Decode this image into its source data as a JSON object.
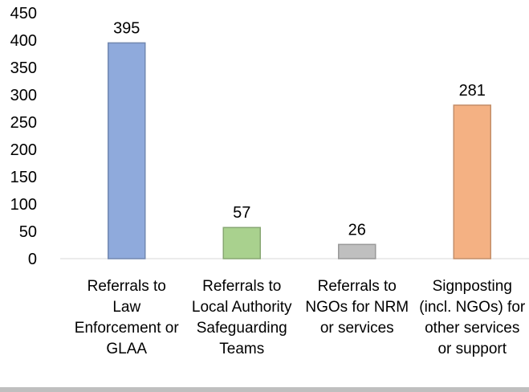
{
  "chart_data": {
    "type": "bar",
    "categories": [
      "Referrals to Law Enforcement or GLAA",
      "Referrals to Local Authority Safeguarding Teams",
      "Referrals to NGOs for NRM or services",
      "Signposting (incl. NGOs) for other services or support"
    ],
    "values": [
      395,
      57,
      26,
      281
    ],
    "colors": [
      "#8faadc",
      "#a9d18e",
      "#bfbfbf",
      "#f4b183"
    ],
    "ylim": [
      0,
      450
    ],
    "yticks": [
      0,
      50,
      100,
      150,
      200,
      250,
      300,
      350,
      400,
      450
    ],
    "grid": false
  }
}
